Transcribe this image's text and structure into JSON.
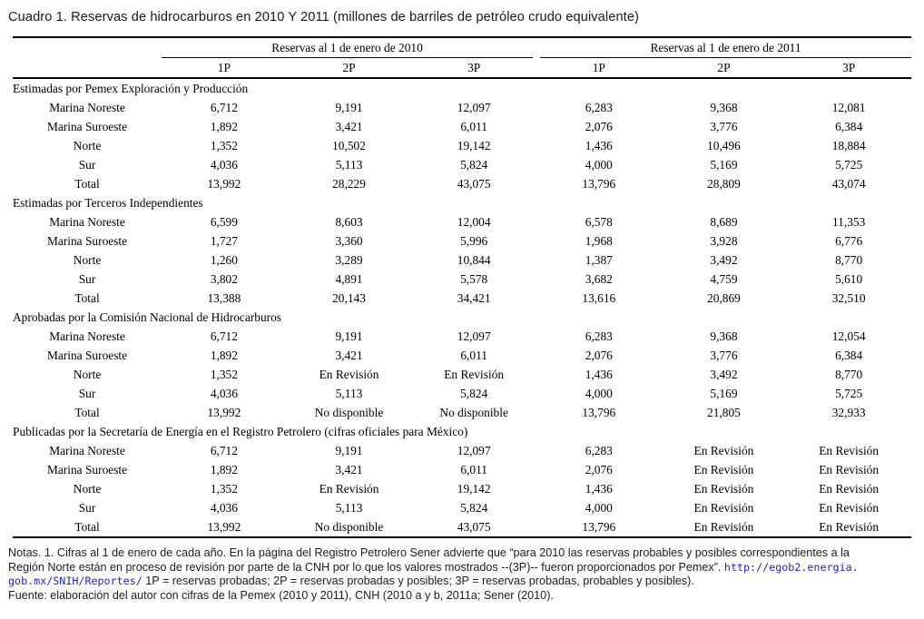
{
  "title": "Cuadro 1. Reservas de hidrocarburos en 2010 Y 2011 (millones de barriles de petróleo crudo equivalente)",
  "table": {
    "group_headers": [
      "Reservas al 1 de enero de 2010",
      "Reservas al 1 de enero de 2011"
    ],
    "col_headers": [
      "1P",
      "2P",
      "3P",
      "1P",
      "2P",
      "3P"
    ],
    "sections": [
      {
        "header": "Estimadas por Pemex Exploración y Producción",
        "rows": [
          {
            "label": "Marina Noreste",
            "values": [
              "6,712",
              "9,191",
              "12,097",
              "6,283",
              "9,368",
              "12,081"
            ]
          },
          {
            "label": "Marina Suroeste",
            "values": [
              "1,892",
              "3,421",
              "6,011",
              "2,076",
              "3,776",
              "6,384"
            ]
          },
          {
            "label": "Norte",
            "values": [
              "1,352",
              "10,502",
              "19,142",
              "1,436",
              "10,496",
              "18,884"
            ]
          },
          {
            "label": "Sur",
            "values": [
              "4,036",
              "5,113",
              "5,824",
              "4,000",
              "5,169",
              "5,725"
            ]
          },
          {
            "label": "Total",
            "values": [
              "13,992",
              "28,229",
              "43,075",
              "13,796",
              "28,809",
              "43,074"
            ]
          }
        ]
      },
      {
        "header": "Estimadas por Terceros Independientes",
        "rows": [
          {
            "label": "Marina Noreste",
            "values": [
              "6,599",
              "8,603",
              "12,004",
              "6,578",
              "8,689",
              "11,353"
            ]
          },
          {
            "label": "Marina Suroeste",
            "values": [
              "1,727",
              "3,360",
              "5,996",
              "1,968",
              "3,928",
              "6,776"
            ]
          },
          {
            "label": "Norte",
            "values": [
              "1,260",
              "3,289",
              "10,844",
              "1,387",
              "3,492",
              "8,770"
            ]
          },
          {
            "label": "Sur",
            "values": [
              "3,802",
              "4,891",
              "5,578",
              "3,682",
              "4,759",
              "5,610"
            ]
          },
          {
            "label": "Total",
            "values": [
              "13,388",
              "20,143",
              "34,421",
              "13,616",
              "20,869",
              "32,510"
            ]
          }
        ]
      },
      {
        "header": "Aprobadas por la Comisión Nacional de Hidrocarburos",
        "rows": [
          {
            "label": "Marina Noreste",
            "values": [
              "6,712",
              "9,191",
              "12,097",
              "6,283",
              "9,368",
              "12,054"
            ]
          },
          {
            "label": "Marina Suroeste",
            "values": [
              "1,892",
              "3,421",
              "6,011",
              "2,076",
              "3,776",
              "6,384"
            ]
          },
          {
            "label": "Norte",
            "values": [
              "1,352",
              "En Revisión",
              "En Revisión",
              "1,436",
              "3,492",
              "8,770"
            ]
          },
          {
            "label": "Sur",
            "values": [
              "4,036",
              "5,113",
              "5,824",
              "4,000",
              "5,169",
              "5,725"
            ]
          },
          {
            "label": "Total",
            "values": [
              "13,992",
              "No disponible",
              "No disponible",
              "13,796",
              "21,805",
              "32,933"
            ]
          }
        ]
      },
      {
        "header": "Publicadas por la Secretaría de Energía en el Registro Petrolero (cifras oficiales para México)",
        "rows": [
          {
            "label": "Marina Noreste",
            "values": [
              "6,712",
              "9,191",
              "12,097",
              "6,283",
              "En Revisión",
              "En Revisión"
            ]
          },
          {
            "label": "Marina Suroeste",
            "values": [
              "1,892",
              "3,421",
              "6,011",
              "2,076",
              "En Revisión",
              "En Revisión"
            ]
          },
          {
            "label": "Norte",
            "values": [
              "1,352",
              "En Revisión",
              "19,142",
              "1,436",
              "En Revisión",
              "En Revisión"
            ]
          },
          {
            "label": "Sur",
            "values": [
              "4,036",
              "5,113",
              "5,824",
              "4,000",
              "En Revisión",
              "En Revisión"
            ]
          },
          {
            "label": "Total",
            "values": [
              "13,992",
              "No disponible",
              "43,075",
              "13,796",
              "En Revisión",
              "En Revisión"
            ]
          }
        ]
      }
    ]
  },
  "notes": {
    "lines": [
      {
        "segments": [
          {
            "t": "Notas. 1. Cifras al 1 de enero de cada año. En la página del Registro Petrolero Sener advierte que “para 2010 las reservas probables y posibles correspondientes a la",
            "link": false
          }
        ]
      },
      {
        "segments": [
          {
            "t": "Región Norte están en proceso de revisión por parte de la CNH por lo que los valores mostrados --(3P)-- fueron proporcionados por Pemex”. ",
            "link": false
          },
          {
            "t": "http://egob2.energia.",
            "link": true
          }
        ]
      },
      {
        "segments": [
          {
            "t": "gob.mx/SNIH/Reportes/",
            "link": true
          },
          {
            "t": " 1P = reservas probadas; 2P = reservas probadas y posibles; 3P = reservas probadas, probables y posibles).",
            "link": false
          }
        ]
      },
      {
        "segments": [
          {
            "t": "Fuente: elaboración del autor con cifras de la Pemex (2010 y 2011), CNH (2010 a y b, 2011a; Sener (2010).",
            "link": false
          }
        ]
      }
    ]
  },
  "colors": {
    "text": "#000000",
    "notes_text": "#1c1c1c",
    "link": "#2222cc",
    "background": "#ffffff"
  }
}
